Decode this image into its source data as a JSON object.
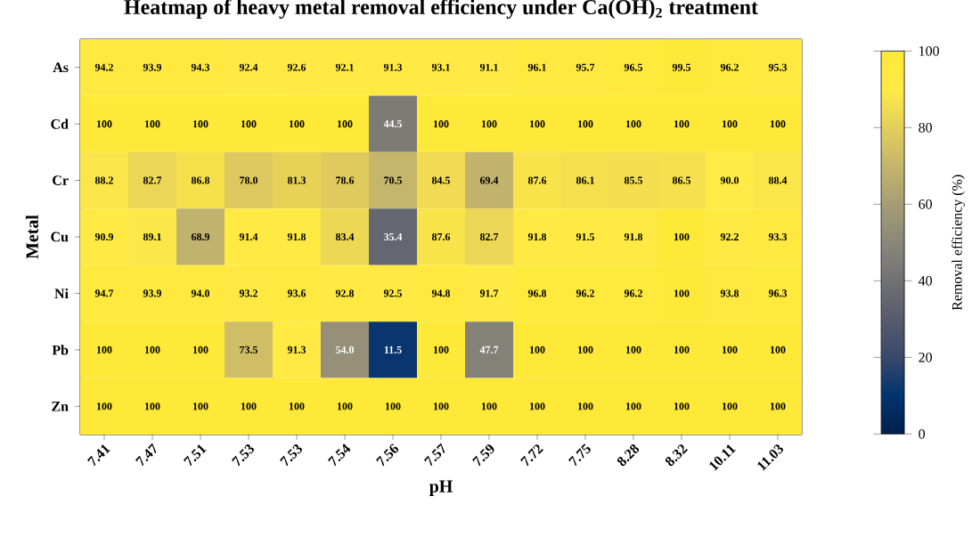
{
  "chart_data": {
    "type": "heatmap",
    "title": "Heatmap of heavy metal removal efficiency under Ca(OH)$_{2}$ treatment",
    "xlabel": "pH",
    "ylabel": "Metal",
    "clabel": "Removal efficiency (%)",
    "categories": [
      "7.41",
      "7.47",
      "7.51",
      "7.53",
      "7.53",
      "7.54",
      "7.56",
      "7.57",
      "7.59",
      "7.72",
      "7.75",
      "8.28",
      "8.32",
      "10.11",
      "11.03"
    ],
    "y_categories": [
      "As",
      "Cd",
      "Cr",
      "Cu",
      "Ni",
      "Pb",
      "Zn"
    ],
    "cells": [
      [
        94.2,
        93.9,
        94.3,
        92.4,
        92.6,
        92.1,
        91.3,
        93.1,
        91.1,
        96.1,
        95.7,
        96.5,
        99.5,
        96.2,
        95.3
      ],
      [
        100,
        100,
        100,
        100,
        100,
        100,
        44.5,
        100,
        100,
        100,
        100,
        100,
        100,
        100,
        100
      ],
      [
        88.2,
        82.7,
        86.8,
        78.0,
        81.3,
        78.6,
        70.5,
        84.5,
        69.4,
        87.6,
        86.1,
        85.5,
        86.5,
        90.0,
        88.4
      ],
      [
        90.9,
        89.1,
        68.9,
        91.4,
        91.8,
        83.4,
        35.4,
        87.6,
        82.7,
        91.8,
        91.5,
        91.8,
        100,
        92.2,
        93.3
      ],
      [
        94.7,
        93.9,
        94.0,
        93.2,
        93.6,
        92.8,
        92.5,
        94.8,
        91.7,
        96.8,
        96.2,
        96.2,
        100,
        93.8,
        96.3
      ],
      [
        100,
        100,
        100,
        73.5,
        91.3,
        54.0,
        11.5,
        100,
        47.7,
        100,
        100,
        100,
        100,
        100,
        100
      ],
      [
        100,
        100,
        100,
        100,
        100,
        100,
        100,
        100,
        100,
        100,
        100,
        100,
        100,
        100,
        100
      ]
    ],
    "cell_labels": [
      [
        "94.2",
        "93.9",
        "94.3",
        "92.4",
        "92.6",
        "92.1",
        "91.3",
        "93.1",
        "91.1",
        "96.1",
        "95.7",
        "96.5",
        "99.5",
        "96.2",
        "95.3"
      ],
      [
        "100",
        "100",
        "100",
        "100",
        "100",
        "100",
        "44.5",
        "100",
        "100",
        "100",
        "100",
        "100",
        "100",
        "100",
        "100"
      ],
      [
        "88.2",
        "82.7",
        "86.8",
        "78.0",
        "81.3",
        "78.6",
        "70.5",
        "84.5",
        "69.4",
        "87.6",
        "86.1",
        "85.5",
        "86.5",
        "90.0",
        "88.4"
      ],
      [
        "90.9",
        "89.1",
        "68.9",
        "91.4",
        "91.8",
        "83.4",
        "35.4",
        "87.6",
        "82.7",
        "91.8",
        "91.5",
        "91.8",
        "100",
        "92.2",
        "93.3"
      ],
      [
        "94.7",
        "93.9",
        "94.0",
        "93.2",
        "93.6",
        "92.8",
        "92.5",
        "94.8",
        "91.7",
        "96.8",
        "96.2",
        "96.2",
        "100",
        "93.8",
        "96.3"
      ],
      [
        "100",
        "100",
        "100",
        "73.5",
        "91.3",
        "54.0",
        "11.5",
        "100",
        "47.7",
        "100",
        "100",
        "100",
        "100",
        "100",
        "100"
      ],
      [
        "100",
        "100",
        "100",
        "100",
        "100",
        "100",
        "100",
        "100",
        "100",
        "100",
        "100",
        "100",
        "100",
        "100",
        "100"
      ]
    ],
    "clim": [
      0,
      100
    ],
    "cticks": [
      0,
      20,
      40,
      60,
      80,
      100
    ]
  }
}
